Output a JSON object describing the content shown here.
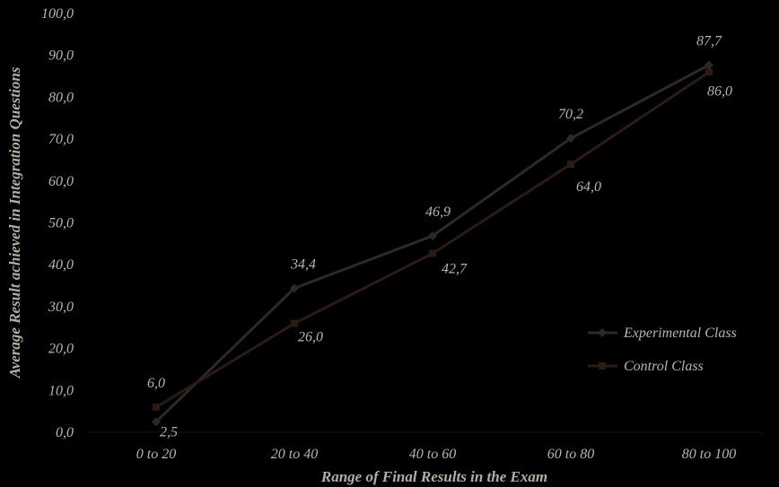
{
  "chart_data": {
    "type": "line",
    "categories": [
      "0 to 20",
      "20 to 40",
      "40 to 60",
      "60 to 80",
      "80 to 100"
    ],
    "series": [
      {
        "name": "Experimental Class",
        "values": [
          2.5,
          34.4,
          46.9,
          70.2,
          87.7
        ],
        "labels": [
          "2,5",
          "34,4",
          "46,9",
          "70,2",
          "87,7"
        ],
        "color": "#2a2a2a"
      },
      {
        "name": "Control Class",
        "values": [
          6.0,
          26.0,
          42.7,
          64.0,
          86.0
        ],
        "labels": [
          "6,0",
          "26,0",
          "42,7",
          "64,0",
          "86,0"
        ],
        "color": "#2a1c14"
      }
    ],
    "xlabel": "Range of Final Results in the Exam",
    "ylabel": "Average Result achieved in Integration Questions",
    "ylim": [
      0,
      100
    ],
    "yticks": [
      0,
      10,
      20,
      30,
      40,
      50,
      60,
      70,
      80,
      90,
      100
    ],
    "ytick_labels": [
      "0,0",
      "10,0",
      "20,0",
      "30,0",
      "40,0",
      "50,0",
      "60,0",
      "70,0",
      "80,0",
      "90,0",
      "100,0"
    ],
    "grid": false,
    "legend_position": "right",
    "background": "#000000",
    "text_color": "#b9b4ad"
  }
}
